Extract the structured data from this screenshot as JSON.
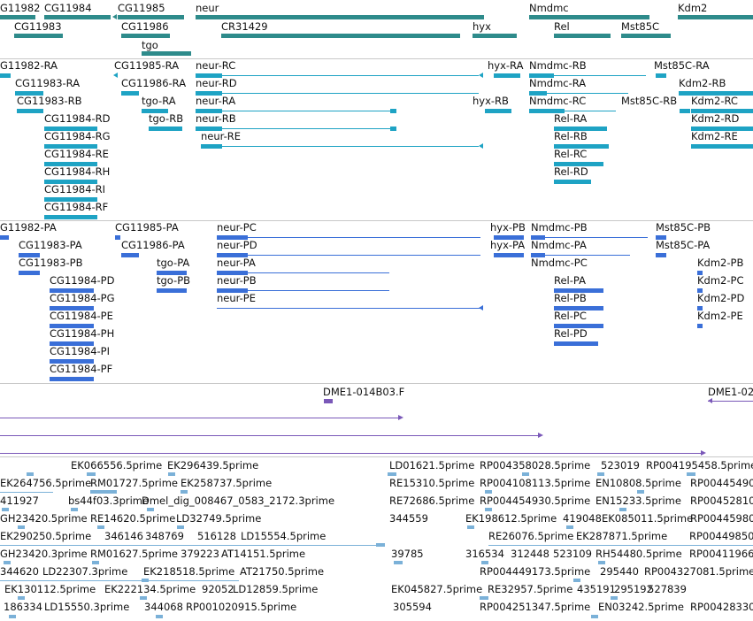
{
  "colors": {
    "gene": "#2e8b8b",
    "transcript": "#1ea3c4",
    "protein": "#3a6fd8",
    "clone": "#7a58b8",
    "est": "#7bb1d8",
    "separator": "#c8c8c8"
  },
  "tracks": {
    "genes": [
      "G11982",
      "CG11984",
      "CG11985",
      "neur",
      "Nmdmc",
      "Kdm2",
      "CG11983",
      "CG11986",
      "CR31429",
      "hyx",
      "Rel",
      "Mst85C",
      "tgo"
    ],
    "transcripts": [
      "G11982-RA",
      "CG11985-RA",
      "neur-RC",
      "hyx-RA",
      "Nmdmc-RB",
      "Mst85C-RA",
      "CG11983-RA",
      "CG11986-RA",
      "neur-RD",
      "Nmdmc-RA",
      "Kdm2-RB",
      "CG11983-RB",
      "tgo-RA",
      "neur-RA",
      "hyx-RB",
      "Nmdmc-RC",
      "Mst85C-RB",
      "Kdm2-RC",
      "CG11984-RD",
      "tgo-RB",
      "neur-RB",
      "Rel-RA",
      "Kdm2-RD",
      "CG11984-RG",
      "neur-RE",
      "Rel-RB",
      "Kdm2-RE",
      "CG11984-RE",
      "Rel-RC",
      "CG11984-RH",
      "Rel-RD",
      "CG11984-RI",
      "CG11984-RF"
    ],
    "proteins": [
      "G11982-PA",
      "CG11985-PA",
      "neur-PC",
      "hyx-PB",
      "Nmdmc-PB",
      "Mst85C-PB",
      "CG11983-PA",
      "CG11986-PA",
      "neur-PD",
      "hyx-PA",
      "Nmdmc-PA",
      "Mst85C-PA",
      "CG11983-PB",
      "tgo-PA",
      "neur-PA",
      "Nmdmc-PC",
      "Kdm2-PB",
      "CG11984-PD",
      "tgo-PB",
      "neur-PB",
      "Rel-PA",
      "Kdm2-PC",
      "CG11984-PG",
      "neur-PE",
      "Rel-PB",
      "Kdm2-PD",
      "CG11984-PE",
      "Rel-PC",
      "Kdm2-PE",
      "CG11984-PH",
      "Rel-PD",
      "CG11984-PI",
      "CG11984-PF"
    ],
    "clones": [
      "DME1-014B03.F",
      "DME1-02"
    ],
    "ests": [
      "EK066556.5prime",
      "EK296439.5prime",
      "LD01621.5prime",
      "RP004358028.5prime",
      "523019",
      "RP004195458.5prime",
      "EK264756.5prime",
      "RM01727.5prime",
      "EK258737.5prime",
      "RE15310.5prime",
      "RP004108113.5prime",
      "EN10808.5prime",
      "RP00445490",
      "411927",
      "bs44f03.3prime",
      "Dmel_dig_008467_0583_2172.3prime",
      "RE72686.5prime",
      "RP004454930.5prime",
      "EN15233.5prime",
      "RP00452810",
      "GH23420.5prime",
      "RE14620.5prime",
      "LD32749.5prime",
      "344559",
      "EK198612.5prime",
      "419048",
      "EK085011.5prime",
      "RP00445980",
      "EK290250.5prime",
      "346146",
      "348769",
      "516128",
      "LD15554.5prime",
      "RE26076.5prime",
      "EK287871.5prime",
      "RP004498500",
      "GH23420.3prime",
      "RM01627.5prime",
      "379223",
      "AT14151.5prime",
      "39785",
      "316534",
      "312448",
      "523109",
      "RH54480.5prime",
      "RP00411966",
      "344620",
      "LD22307.3prime",
      "EK218518.5prime",
      "AT21750.5prime",
      "RP004449173.5prime",
      "295440",
      "RP004327081.5prime",
      "EK130112.5prime",
      "EK222134.5prime",
      "92052",
      "LD12859.5prime",
      "EK045827.5prime",
      "RE32957.5prime",
      "435191",
      "295192",
      "527839",
      "186334",
      "LD15550.3prime",
      "344068",
      "RP001020915.5prime",
      "305594",
      "RP004251347.5prime",
      "EN03242.5prime",
      "RP00428330"
    ]
  }
}
